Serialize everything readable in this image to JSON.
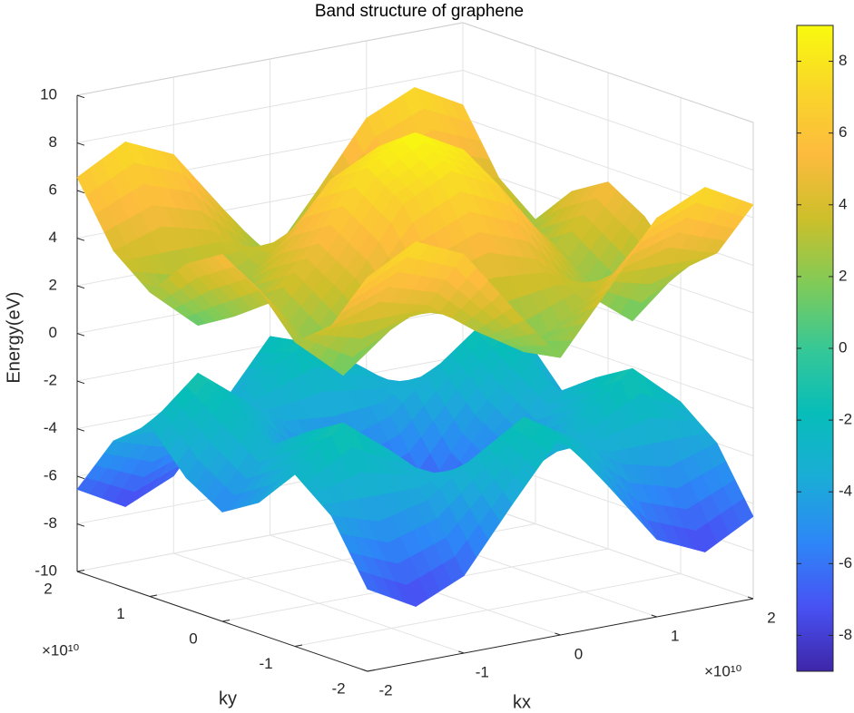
{
  "chart_data": {
    "type": "surface",
    "title": "Band structure of graphene",
    "xlabel": "kx",
    "ylabel": "ky",
    "zlabel": "Energy(eV)",
    "x_exponent": "×10¹⁰",
    "y_exponent": "×10¹⁰",
    "x": [
      -2,
      -1.5,
      -1,
      -0.5,
      0,
      0.5,
      1,
      1.5,
      2
    ],
    "y": [
      -2,
      -1.5,
      -1,
      -0.5,
      0,
      0.5,
      1,
      1.5,
      2
    ],
    "series": [
      {
        "z": [
          [
            6.55,
            7.66,
            6.75,
            4.14,
            1.65,
            4.14,
            6.75,
            7.66,
            6.55
          ],
          [
            3.99,
            4.62,
            4.1,
            2.63,
            1.37,
            2.63,
            4.1,
            4.62,
            3.99
          ],
          [
            2.78,
            1.0,
            2.57,
            4.34,
            5.01,
            4.34,
            2.57,
            1.0,
            2.78
          ],
          [
            4.49,
            1.91,
            4.17,
            6.88,
            7.9,
            6.88,
            4.17,
            1.91,
            4.49
          ],
          [
            5.41,
            3.01,
            5.09,
            7.9,
            9.0,
            7.9,
            5.09,
            3.01,
            5.41
          ],
          [
            4.49,
            1.91,
            4.17,
            6.88,
            7.9,
            6.88,
            4.17,
            1.91,
            4.49
          ],
          [
            2.78,
            1.0,
            2.57,
            4.34,
            5.01,
            4.34,
            2.57,
            1.0,
            2.78
          ],
          [
            3.99,
            4.62,
            4.1,
            2.63,
            1.37,
            2.63,
            4.1,
            4.62,
            3.99
          ],
          [
            6.55,
            7.66,
            6.75,
            4.14,
            1.65,
            4.14,
            6.75,
            7.66,
            6.55
          ]
        ]
      },
      {
        "z": [
          [
            -6.55,
            -7.66,
            -6.75,
            -4.14,
            -1.65,
            -4.14,
            -6.75,
            -7.66,
            -6.55
          ],
          [
            -3.99,
            -4.62,
            -4.1,
            -2.63,
            -1.37,
            -2.63,
            -4.1,
            -4.62,
            -3.99
          ],
          [
            -2.78,
            -1.0,
            -2.57,
            -4.34,
            -5.01,
            -4.34,
            -2.57,
            -1.0,
            -2.78
          ],
          [
            -4.49,
            -1.91,
            -4.17,
            -6.88,
            -7.9,
            -6.88,
            -4.17,
            -1.91,
            -4.49
          ],
          [
            -5.41,
            -3.01,
            -5.09,
            -7.9,
            -9.0,
            -7.9,
            -5.09,
            -3.01,
            -5.41
          ],
          [
            -4.49,
            -1.91,
            -4.17,
            -6.88,
            -7.9,
            -6.88,
            -4.17,
            -1.91,
            -4.49
          ],
          [
            -2.78,
            -1.0,
            -2.57,
            -4.34,
            -5.01,
            -4.34,
            -2.57,
            -1.0,
            -2.78
          ],
          [
            -3.99,
            -4.62,
            -4.1,
            -2.63,
            -1.37,
            -2.63,
            -4.1,
            -4.62,
            -3.99
          ],
          [
            -6.55,
            -7.66,
            -6.75,
            -4.14,
            -1.65,
            -4.14,
            -6.75,
            -7.66,
            -6.55
          ]
        ]
      }
    ],
    "xlim": [
      -2,
      2
    ],
    "ylim": [
      -2,
      2
    ],
    "zlim": [
      -10,
      10
    ],
    "xticks": [
      -2,
      -1,
      0,
      1,
      2
    ],
    "yticks": [
      -2,
      -1,
      0,
      1,
      2
    ],
    "zticks": [
      -10,
      -8,
      -6,
      -4,
      -2,
      0,
      2,
      4,
      6,
      8,
      10
    ],
    "grid": true,
    "colormap": [
      "#3e26a8",
      "#4852f4",
      "#2d87f7",
      "#1aadd6",
      "#07bdb9",
      "#37c896",
      "#80cb58",
      "#ccbf2a",
      "#fdbb3e",
      "#f9d629",
      "#f9fa0e"
    ],
    "clim": [
      -9,
      9
    ],
    "cticks": [
      -8,
      -6,
      -4,
      -2,
      0,
      2,
      4,
      6,
      8
    ]
  }
}
